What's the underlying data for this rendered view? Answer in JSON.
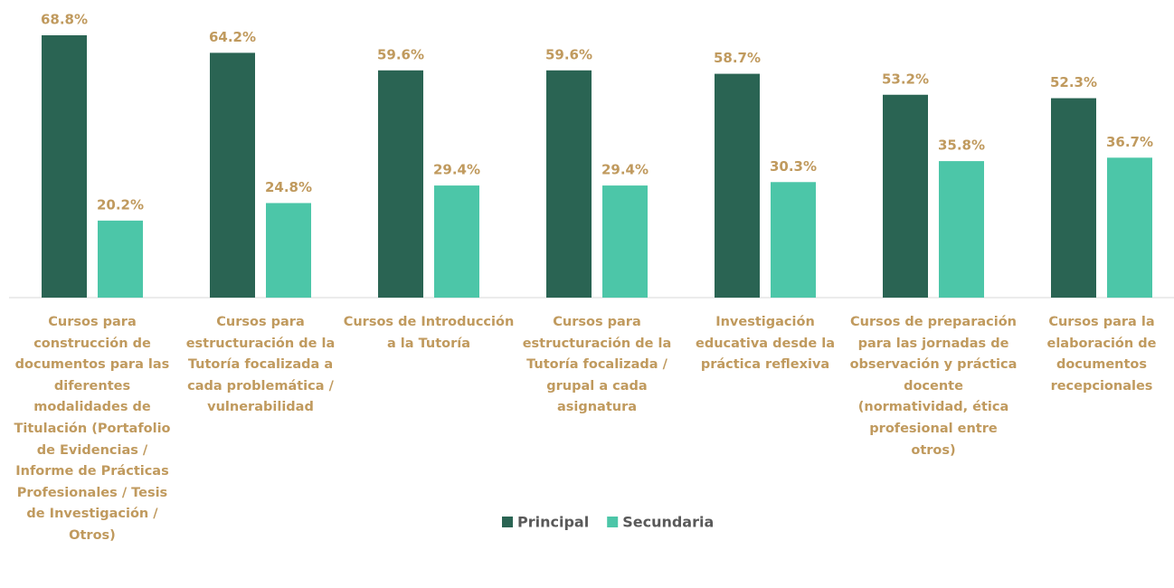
{
  "chart_data": {
    "type": "bar",
    "categories": [
      "Cursos para construcción de documentos para las diferentes modalidades de Titulación (Portafolio de Evidencias / Informe de Prácticas Profesionales / Tesis de Investigación / Otros)",
      "Cursos para estructuración de la Tutoría focalizada a cada problemática / vulnerabilidad",
      "Cursos de Introducción a la Tutoría",
      "Cursos para estructuración de la Tutoría focalizada / grupal a cada asignatura",
      "Investigación educativa desde la práctica reflexiva",
      "Cursos de preparación para las jornadas de observación y práctica docente (normatividad, ética profesional entre otros)",
      "Cursos para la elaboración de documentos recepcionales"
    ],
    "series": [
      {
        "name": "Principal",
        "color": "#2a6453",
        "values": [
          68.8,
          64.2,
          59.6,
          59.6,
          58.7,
          53.2,
          52.3
        ],
        "value_labels": [
          "68.8%",
          "64.2%",
          "59.6%",
          "59.6%",
          "58.7%",
          "53.2%",
          "52.3%"
        ]
      },
      {
        "name": "Secundaria",
        "color": "#4cc6a8",
        "values": [
          20.2,
          24.8,
          29.4,
          29.4,
          30.3,
          35.8,
          36.7
        ],
        "value_labels": [
          "20.2%",
          "24.8%",
          "29.4%",
          "29.4%",
          "30.3%",
          "35.8%",
          "36.7%"
        ]
      }
    ],
    "legend": "bottom"
  }
}
